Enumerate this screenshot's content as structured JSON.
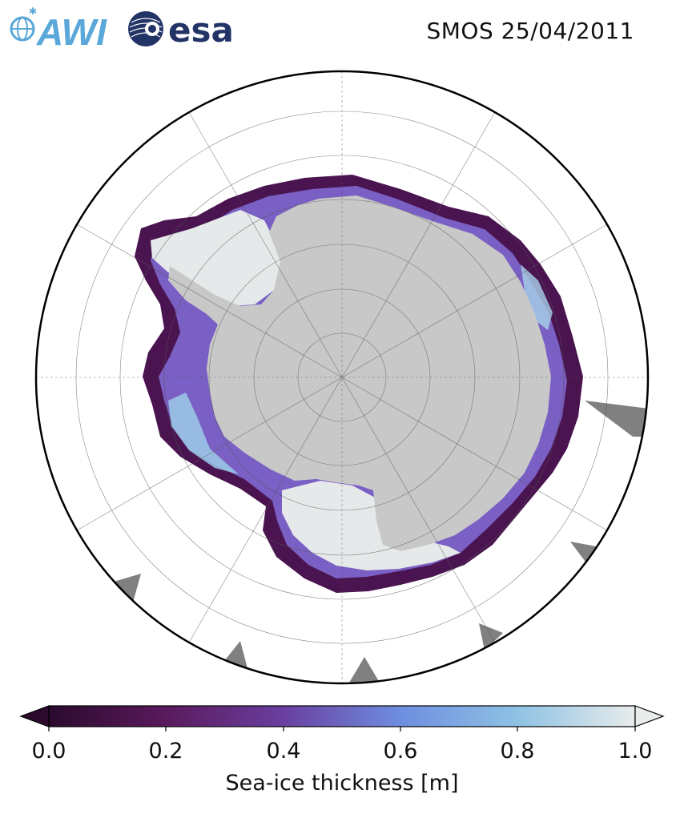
{
  "header": {
    "title": "SMOS 25/04/2011",
    "logos": [
      {
        "name": "AWI",
        "text": "AWI",
        "color": "#5aa7d9"
      },
      {
        "name": "ESA",
        "text": "esa",
        "color": "#223366"
      }
    ]
  },
  "map": {
    "projection": "south-polar-stereographic",
    "region": "Antarctica / Southern Ocean",
    "land_color": "#c8c8c8",
    "no_data_color": "#808080",
    "ocean_color": "#ffffff",
    "graticule": "on"
  },
  "colorbar": {
    "label": "Sea-ice thickness [m]",
    "min": 0.0,
    "max": 1.0,
    "extend": "both",
    "ticks": [
      "0.0",
      "0.2",
      "0.4",
      "0.6",
      "0.8",
      "1.0"
    ],
    "colormap_stops": [
      "#2b0a2e",
      "#5a1a5c",
      "#6a3fa0",
      "#6e7ad8",
      "#8fbde6",
      "#e8eceb"
    ]
  },
  "chart_data": {
    "type": "heatmap",
    "title": "SMOS 25/04/2011",
    "variable": "Sea-ice thickness [m]",
    "value_range": [
      0.0,
      1.0
    ],
    "colorbar_ticks": [
      0.0,
      0.2,
      0.4,
      0.6,
      0.8,
      1.0
    ]
  }
}
